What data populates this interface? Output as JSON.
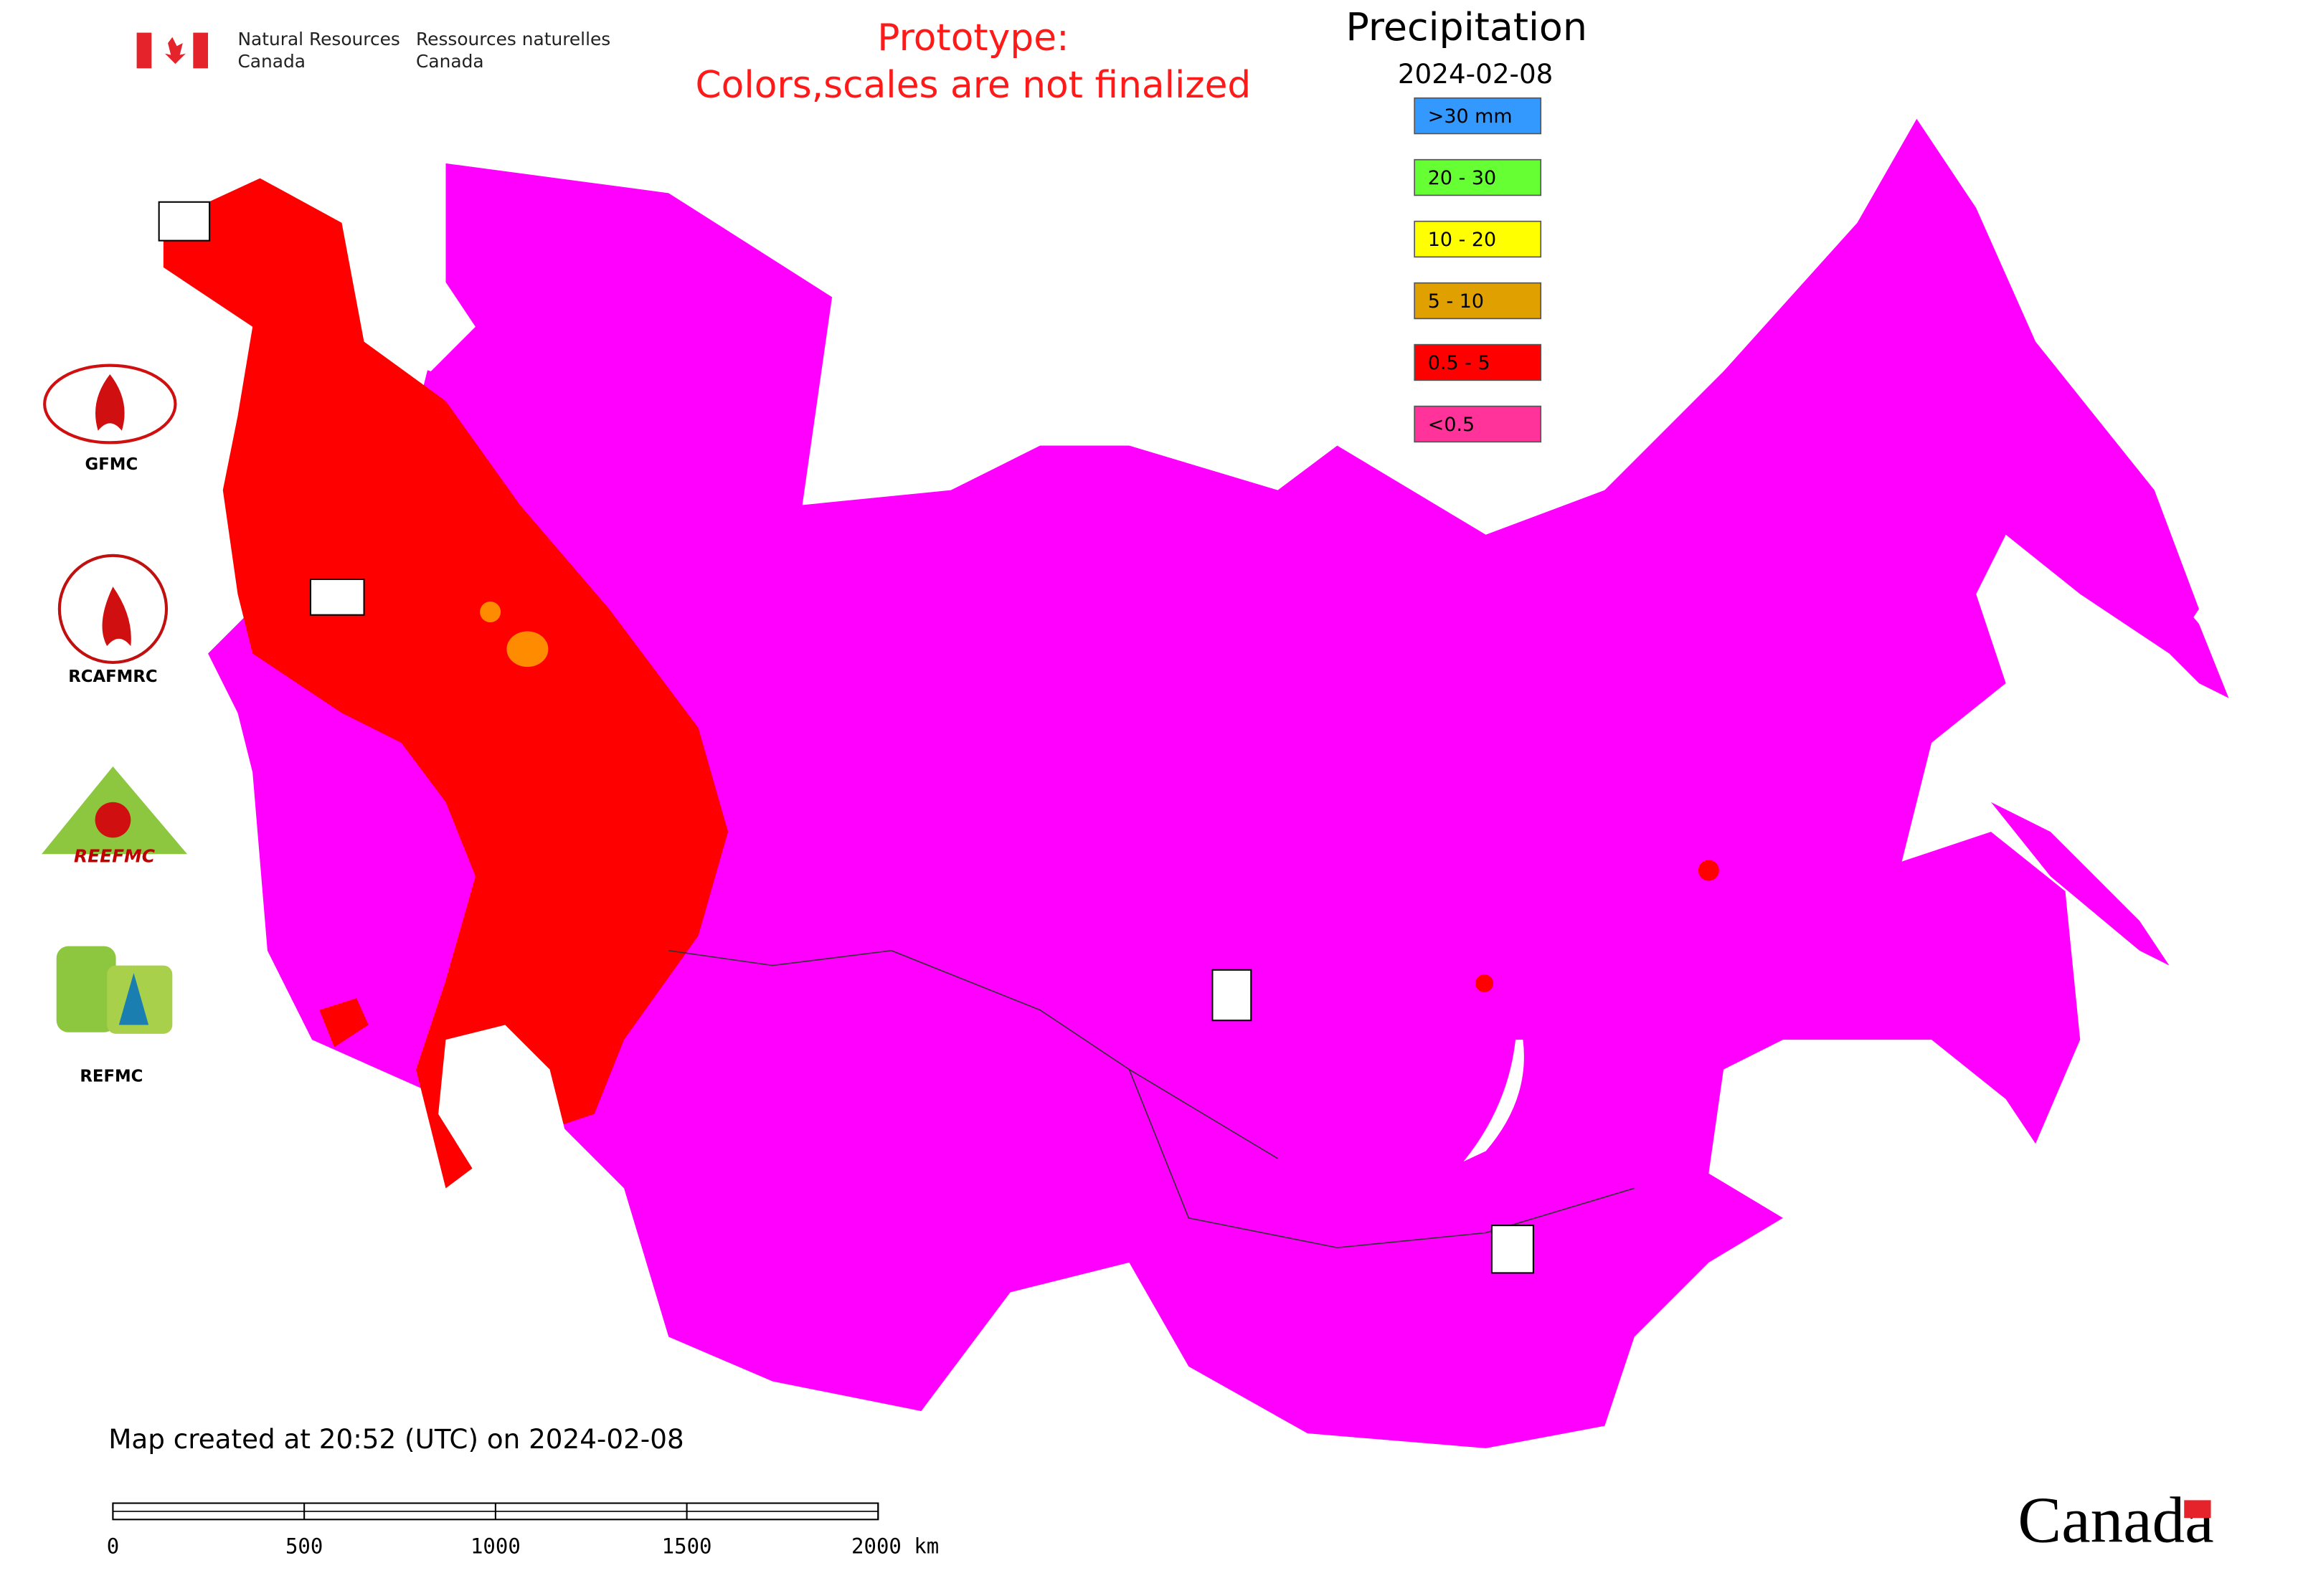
{
  "header": {
    "agency_en": [
      "Natural Resources",
      "Canada"
    ],
    "agency_fr": [
      "Ressources naturelles",
      "Canada"
    ]
  },
  "notice": [
    "Prototype:",
    "Colors,scales are not finalized"
  ],
  "legend": {
    "title": "Precipitation",
    "date": "2024-02-08",
    "items": [
      {
        "label": ">30 mm",
        "color": "#3399ff"
      },
      {
        "label": "20 - 30",
        "color": "#66ff33"
      },
      {
        "label": "10 - 20",
        "color": "#ffff00"
      },
      {
        "label": "5 - 10",
        "color": "#e0a000"
      },
      {
        "label": "0.5 - 5",
        "color": "#ff0000"
      },
      {
        "label": "<0.5",
        "color": "#ff3399"
      }
    ]
  },
  "logos": {
    "gfmc": "GFMC",
    "rcafmrc": "RCAFMRC",
    "reefmc": "REEFMC",
    "refmc": "REFMC"
  },
  "footer": {
    "created": "Map created at 20:52 (UTC) on 2024-02-08",
    "scale_labels": [
      "0",
      "500",
      "1000",
      "1500",
      "2000 km"
    ],
    "wordmark": "Canada"
  }
}
